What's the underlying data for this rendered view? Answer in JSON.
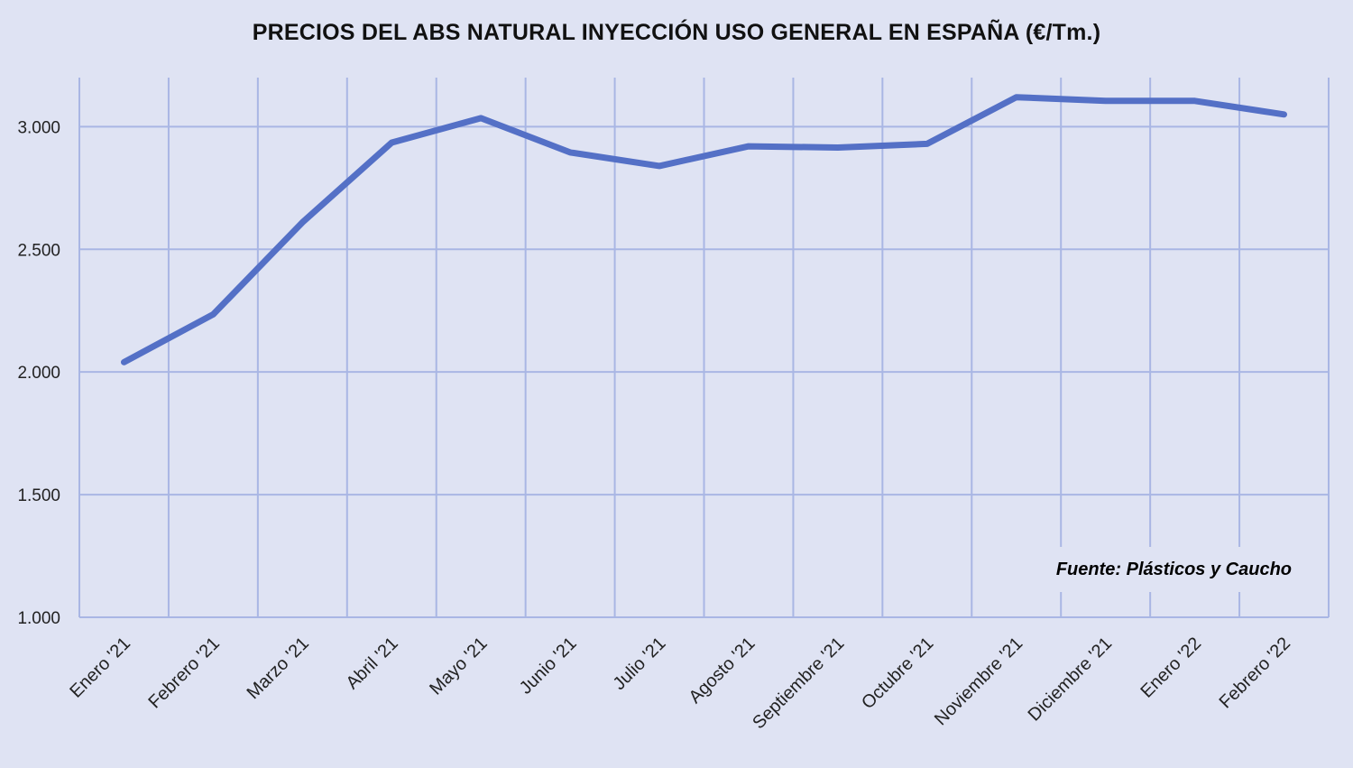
{
  "chart_data": {
    "type": "line",
    "title": "PRECIOS DEL ABS NATURAL INYECCIÓN  USO GENERAL EN ESPAÑA (€/Tm.)",
    "categories": [
      "Enero '21",
      "Febrero '21",
      "Marzo '21",
      "Abril '21",
      "Mayo '21",
      "Junio '21",
      "Julio '21",
      "Agosto '21",
      "Septiembre '21",
      "Octubre '21",
      "Noviembre '21",
      "Diciembre '21",
      "Enero '22",
      "Febrero '22"
    ],
    "series": [
      {
        "values": [
          2040,
          2235,
          2610,
          2935,
          3035,
          2895,
          2840,
          2920,
          2915,
          2930,
          3120,
          3105,
          3105,
          3050
        ]
      }
    ],
    "yticks": [
      1000,
      1500,
      2000,
      2500,
      3000
    ],
    "ytick_labels": [
      "1.000",
      "1.500",
      "2.000",
      "2.500",
      "3.000"
    ],
    "ylim": [
      1000,
      3200
    ],
    "grid": true,
    "legend": "none",
    "annotation": "Fuente: Plásticos y Caucho",
    "line_color": "#5470c6",
    "grid_color": "#a9b6e4",
    "background": "#dfe3f3"
  }
}
